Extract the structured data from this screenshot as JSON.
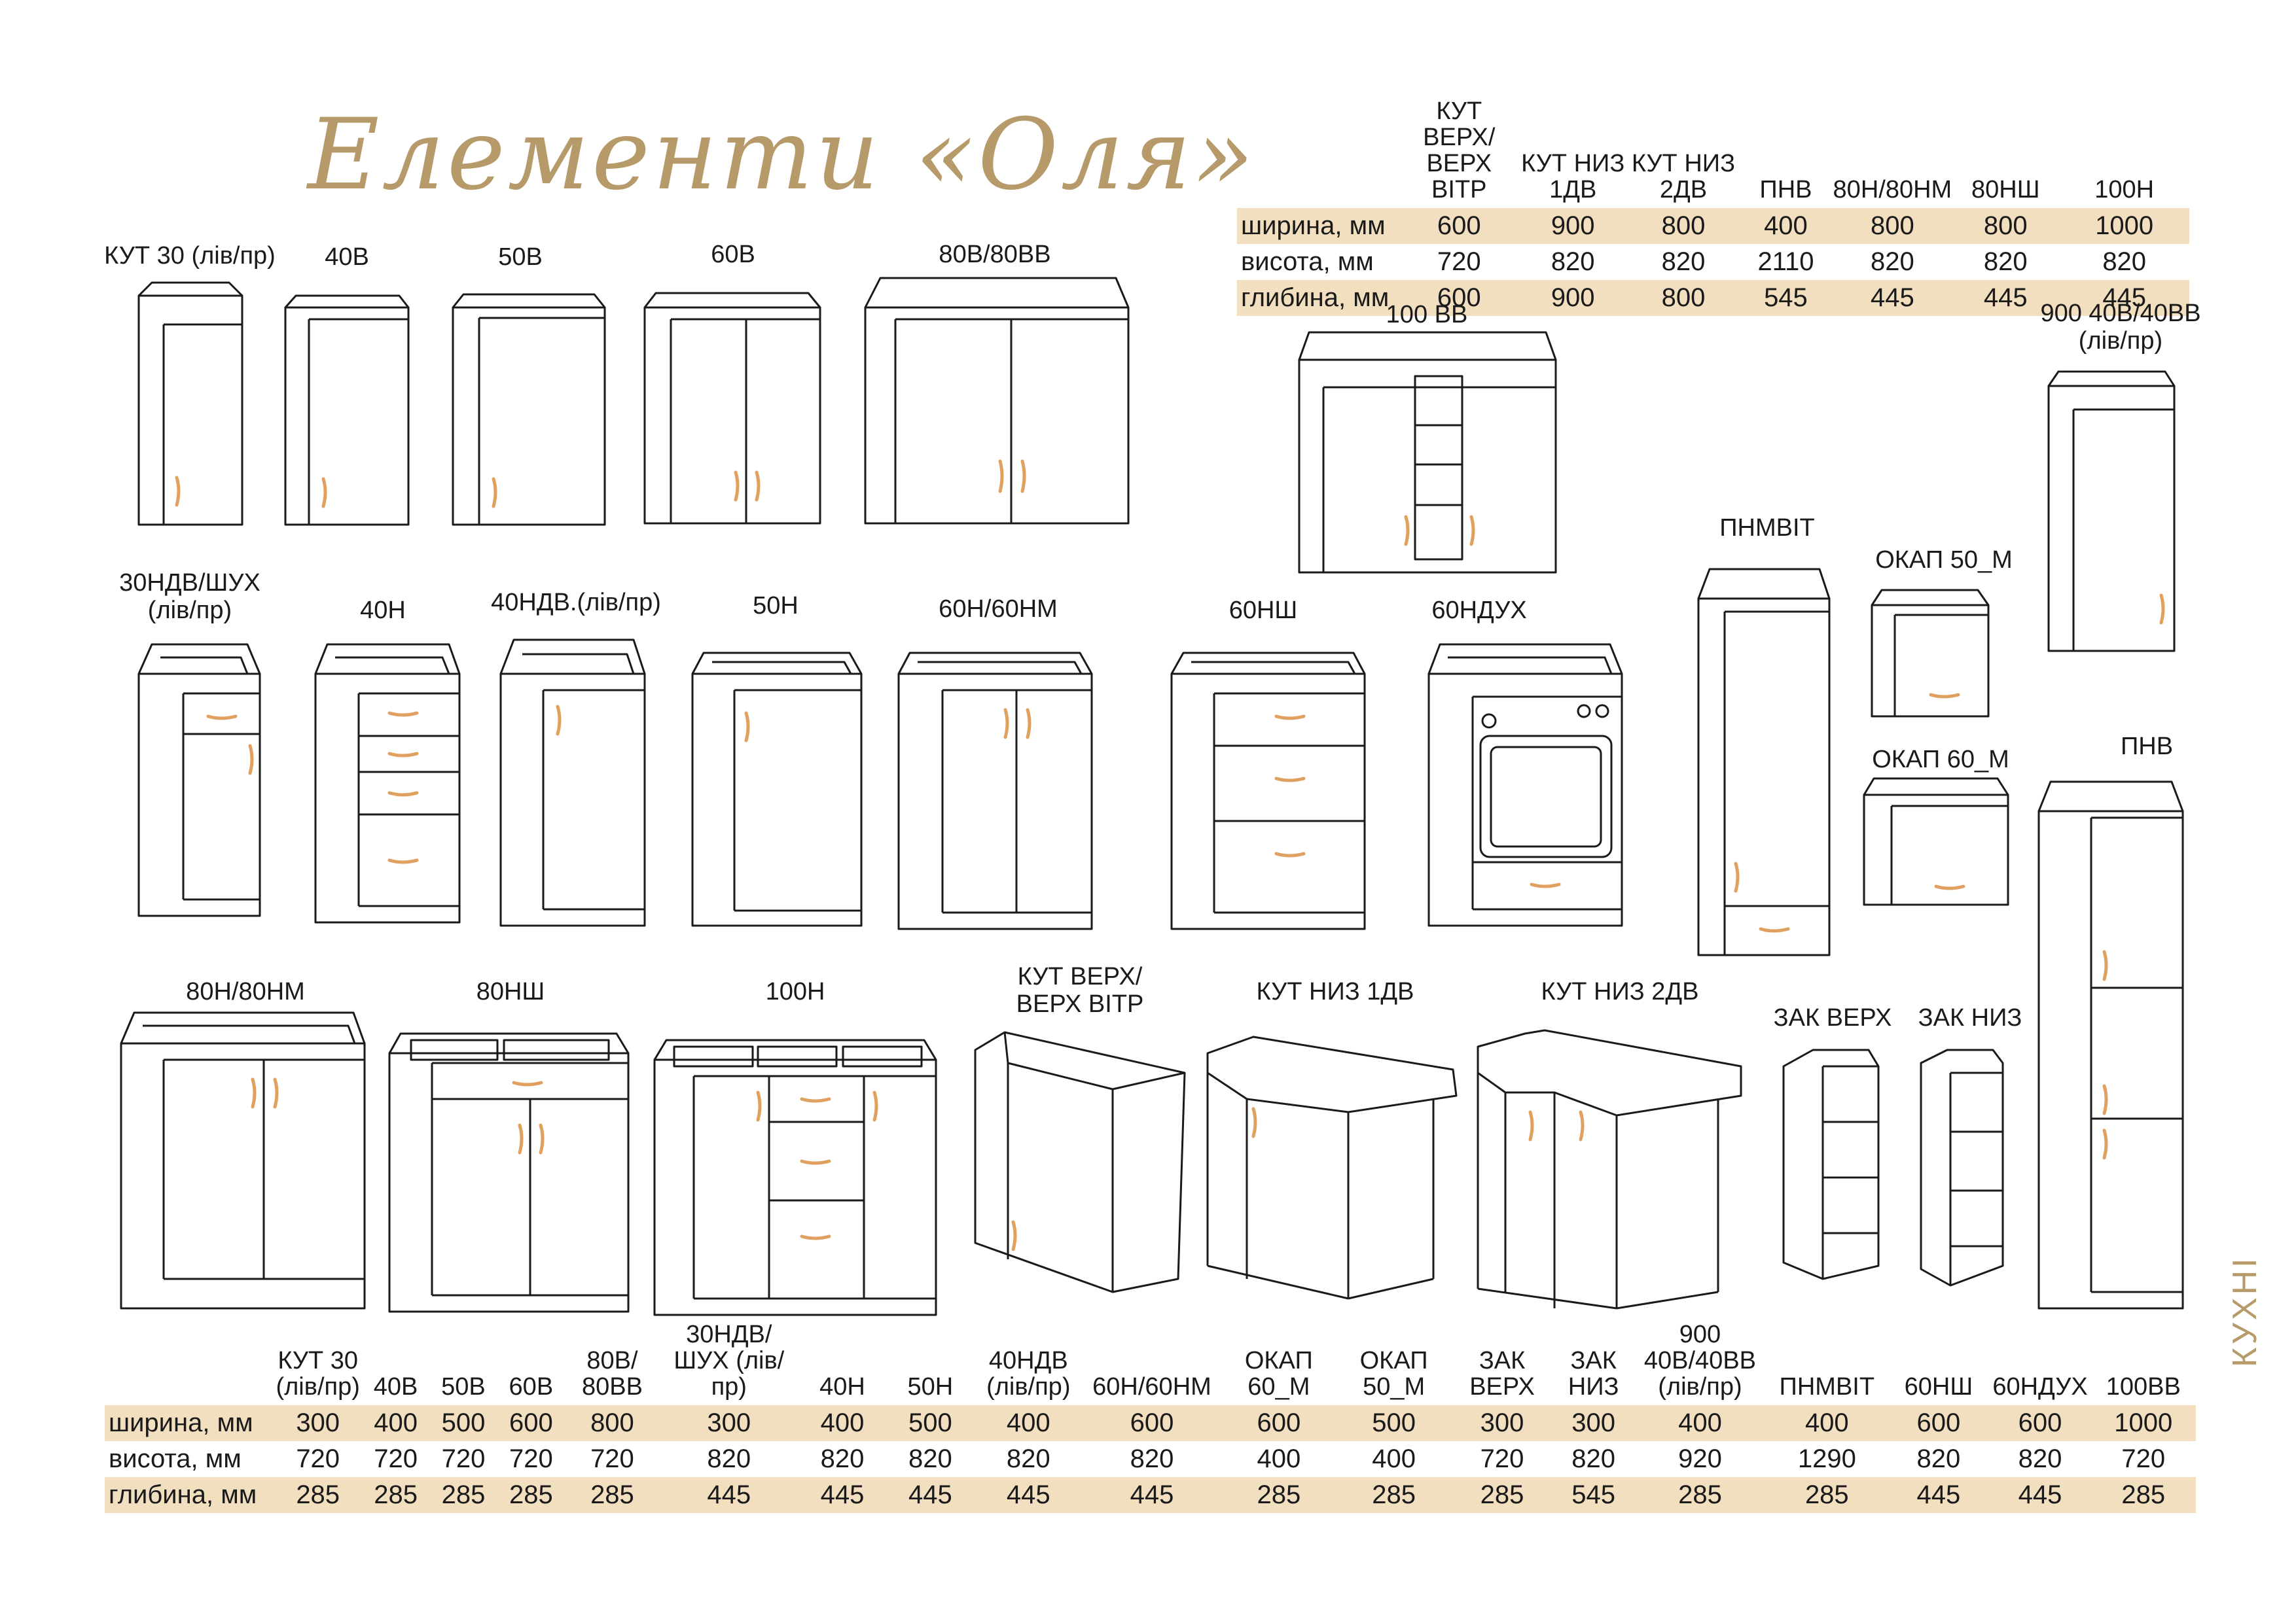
{
  "title": "Елементи «Оля»",
  "side_label": "КУХНІ",
  "colors": {
    "accent": "#b79a6a",
    "row_highlight": "#f2dfc0",
    "handle": "#e0a060"
  },
  "top_table": {
    "columns": [
      "КУТ ВЕРХ/ ВЕРХ ВІТР",
      "КУТ НИЗ 1ДВ",
      "КУТ НИЗ 2ДВ",
      "ПНВ",
      "80Н/80НМ",
      "80НШ",
      "100Н"
    ],
    "rows": [
      {
        "label": "ширина, мм",
        "values": [
          "600",
          "900",
          "800",
          "400",
          "800",
          "800",
          "1000"
        ]
      },
      {
        "label": "висота, мм",
        "values": [
          "720",
          "820",
          "820",
          "2110",
          "820",
          "820",
          "820"
        ]
      },
      {
        "label": "глибина, мм",
        "values": [
          "600",
          "900",
          "800",
          "545",
          "445",
          "445",
          "445"
        ]
      }
    ]
  },
  "bottom_table": {
    "columns": [
      "КУТ 30 (лів/пр)",
      "40В",
      "50В",
      "60В",
      "80В/ 80ВВ",
      "30НДВ/ШУХ (лів/пр)",
      "40Н",
      "50Н",
      "40НДВ (лів/пр)",
      "60Н/60НМ",
      "ОКАП 60_М",
      "ОКАП 50_М",
      "ЗАК ВЕРХ",
      "ЗАК НИЗ",
      "900 40В/40ВВ (лів/пр)",
      "ПНМВІТ",
      "60НШ",
      "60НДУХ",
      "100ВВ"
    ],
    "rows": [
      {
        "label": "ширина, мм",
        "values": [
          "300",
          "400",
          "500",
          "600",
          "800",
          "300",
          "400",
          "500",
          "400",
          "600",
          "600",
          "500",
          "300",
          "300",
          "400",
          "400",
          "600",
          "600",
          "1000"
        ]
      },
      {
        "label": "висота, мм",
        "values": [
          "720",
          "720",
          "720",
          "720",
          "720",
          "820",
          "820",
          "820",
          "820",
          "820",
          "400",
          "400",
          "720",
          "820",
          "920",
          "1290",
          "820",
          "820",
          "720"
        ]
      },
      {
        "label": "глибина, мм",
        "values": [
          "285",
          "285",
          "285",
          "285",
          "285",
          "445",
          "445",
          "445",
          "445",
          "445",
          "285",
          "285",
          "285",
          "545",
          "285",
          "285",
          "445",
          "445",
          "285"
        ]
      }
    ]
  },
  "items": [
    {
      "label": "КУТ 30 (лів/пр)"
    },
    {
      "label": "40В"
    },
    {
      "label": "50В"
    },
    {
      "label": "60В"
    },
    {
      "label": "80В/80ВВ"
    },
    {
      "label": "100 ВВ"
    },
    {
      "label": "900 40В/40ВВ (лів/пр)"
    },
    {
      "label": "30НДВ/ШУХ (лів/пр)"
    },
    {
      "label": "40Н"
    },
    {
      "label": "40НДВ.(лів/пр)"
    },
    {
      "label": "50Н"
    },
    {
      "label": "60Н/60НМ"
    },
    {
      "label": "60НШ"
    },
    {
      "label": "60НДУХ"
    },
    {
      "label": "ПНМВІТ"
    },
    {
      "label": "ОКАП 50_М"
    },
    {
      "label": "ОКАП 60_М"
    },
    {
      "label": "ПНВ"
    },
    {
      "label": "80Н/80НМ"
    },
    {
      "label": "80НШ"
    },
    {
      "label": "100Н"
    },
    {
      "label": "КУТ ВЕРХ/ ВЕРХ ВІТР"
    },
    {
      "label": "КУТ НИЗ 1ДВ"
    },
    {
      "label": "КУТ НИЗ 2ДВ"
    },
    {
      "label": "ЗАК ВЕРХ"
    },
    {
      "label": "ЗАК НИЗ"
    }
  ]
}
